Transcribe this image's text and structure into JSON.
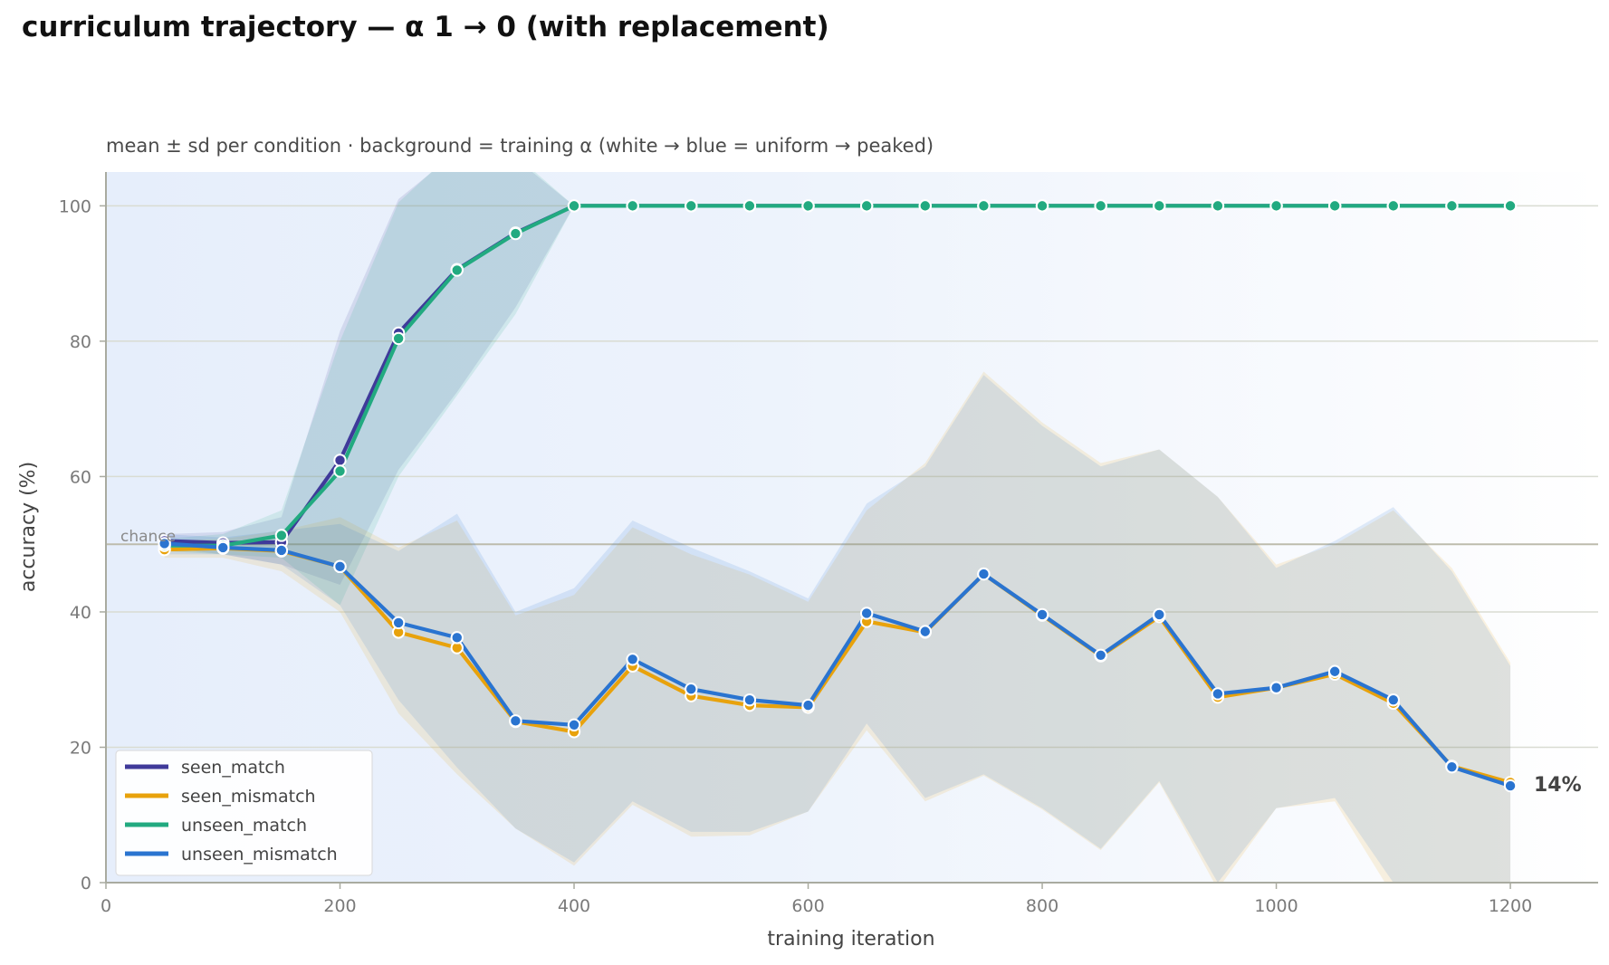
{
  "title": "curriculum trajectory — α 1 → 0 (with replacement)",
  "chart_data": {
    "type": "line",
    "subtitle": "mean ± sd per condition · background = training α (white → blue = uniform → peaked)",
    "xlabel": "training iteration",
    "ylabel": "accuracy (%)",
    "xlim": [
      0,
      1275
    ],
    "ylim": [
      0,
      105
    ],
    "xticks": [
      0,
      200,
      400,
      600,
      800,
      1000,
      1200
    ],
    "yticks": [
      0,
      20,
      40,
      60,
      80,
      100
    ],
    "grid": "horizontal",
    "legend_position": "lower-left",
    "background_note": "training α gradient: blue (peaked, α=1) at left → white (uniform, α=0) at right",
    "reference_line": {
      "y": 50,
      "label": "chance"
    },
    "end_annotation": {
      "x": 1200,
      "y": 14.3,
      "text": "14%"
    },
    "x": [
      50,
      100,
      150,
      200,
      250,
      300,
      350,
      400,
      450,
      500,
      550,
      600,
      650,
      700,
      750,
      800,
      850,
      900,
      950,
      1000,
      1050,
      1100,
      1150,
      1200
    ],
    "series": [
      {
        "name": "seen_match",
        "color": "#3f3a9a",
        "mean": [
          50.5,
          50.2,
          50.3,
          62.4,
          81.2,
          90.6,
          96.0,
          100,
          100,
          100,
          100,
          100,
          100,
          100,
          100,
          100,
          100,
          100,
          100,
          100,
          100,
          100,
          100,
          100
        ],
        "lower": [
          49.5,
          48.5,
          47.0,
          44.0,
          61.0,
          72.5,
          85.0,
          100,
          100,
          100,
          100,
          100,
          100,
          100,
          100,
          100,
          100,
          100,
          100,
          100,
          100,
          100,
          100,
          100
        ],
        "upper": [
          51.5,
          51.8,
          54.0,
          81.5,
          101.0,
          108.0,
          107.0,
          100,
          100,
          100,
          100,
          100,
          100,
          100,
          100,
          100,
          100,
          100,
          100,
          100,
          100,
          100,
          100,
          100
        ]
      },
      {
        "name": "seen_mismatch",
        "color": "#e8a20c",
        "mean": [
          49.2,
          49.4,
          49.0,
          46.7,
          37.0,
          34.7,
          23.8,
          22.3,
          32.0,
          27.6,
          26.2,
          25.9,
          38.6,
          37.0,
          45.6,
          39.5,
          33.5,
          39.3,
          27.4,
          28.8,
          30.8,
          26.5,
          17.2,
          14.8
        ],
        "lower": [
          48.0,
          48.0,
          46.0,
          40.0,
          25.0,
          16.0,
          8.0,
          2.5,
          11.5,
          6.8,
          7.0,
          10.5,
          22.5,
          12.0,
          15.8,
          10.8,
          4.8,
          14.8,
          -1.0,
          11.0,
          12.0,
          -2.0,
          -12.0,
          -3.0
        ],
        "upper": [
          50.5,
          50.8,
          52.0,
          54.0,
          49.5,
          53.5,
          39.5,
          42.5,
          52.5,
          48.5,
          45.5,
          41.5,
          55.0,
          62.0,
          75.5,
          68.0,
          62.0,
          64.0,
          57.0,
          47.0,
          50.0,
          55.0,
          46.5,
          32.5
        ]
      },
      {
        "name": "unseen_match",
        "color": "#22aa80",
        "mean": [
          49.8,
          49.8,
          51.3,
          60.8,
          80.4,
          90.5,
          95.9,
          100,
          100,
          100,
          100,
          100,
          100,
          100,
          100,
          100,
          100,
          100,
          100,
          100,
          100,
          100,
          100,
          100
        ],
        "lower": [
          49.0,
          48.5,
          48.0,
          41.0,
          60.0,
          72.0,
          84.0,
          100,
          100,
          100,
          100,
          100,
          100,
          100,
          100,
          100,
          100,
          100,
          100,
          100,
          100,
          100,
          100,
          100
        ],
        "upper": [
          50.8,
          51.5,
          55.0,
          80.0,
          100.5,
          108.5,
          107.5,
          100,
          100,
          100,
          100,
          100,
          100,
          100,
          100,
          100,
          100,
          100,
          100,
          100,
          100,
          100,
          100,
          100
        ]
      },
      {
        "name": "unseen_mismatch",
        "color": "#2a74d0",
        "mean": [
          50.1,
          49.5,
          49.1,
          46.7,
          38.4,
          36.2,
          23.9,
          23.3,
          33.0,
          28.6,
          27.0,
          26.2,
          39.8,
          37.1,
          45.6,
          39.6,
          33.6,
          39.6,
          27.9,
          28.8,
          31.2,
          27.0,
          17.1,
          14.3
        ],
        "lower": [
          48.5,
          48.5,
          47.0,
          41.0,
          27.0,
          17.0,
          8.0,
          3.0,
          12.0,
          7.5,
          7.5,
          10.5,
          23.5,
          12.5,
          16.0,
          11.0,
          5.0,
          15.0,
          0.0,
          11.0,
          12.5,
          0.0,
          -10.0,
          -2.0
        ],
        "upper": [
          51.5,
          51.0,
          52.0,
          53.0,
          49.0,
          54.5,
          40.0,
          43.5,
          53.5,
          49.5,
          46.0,
          42.0,
          56.0,
          61.5,
          75.0,
          67.5,
          61.5,
          64.0,
          57.0,
          46.5,
          50.5,
          55.5,
          46.0,
          32.0
        ]
      }
    ]
  }
}
